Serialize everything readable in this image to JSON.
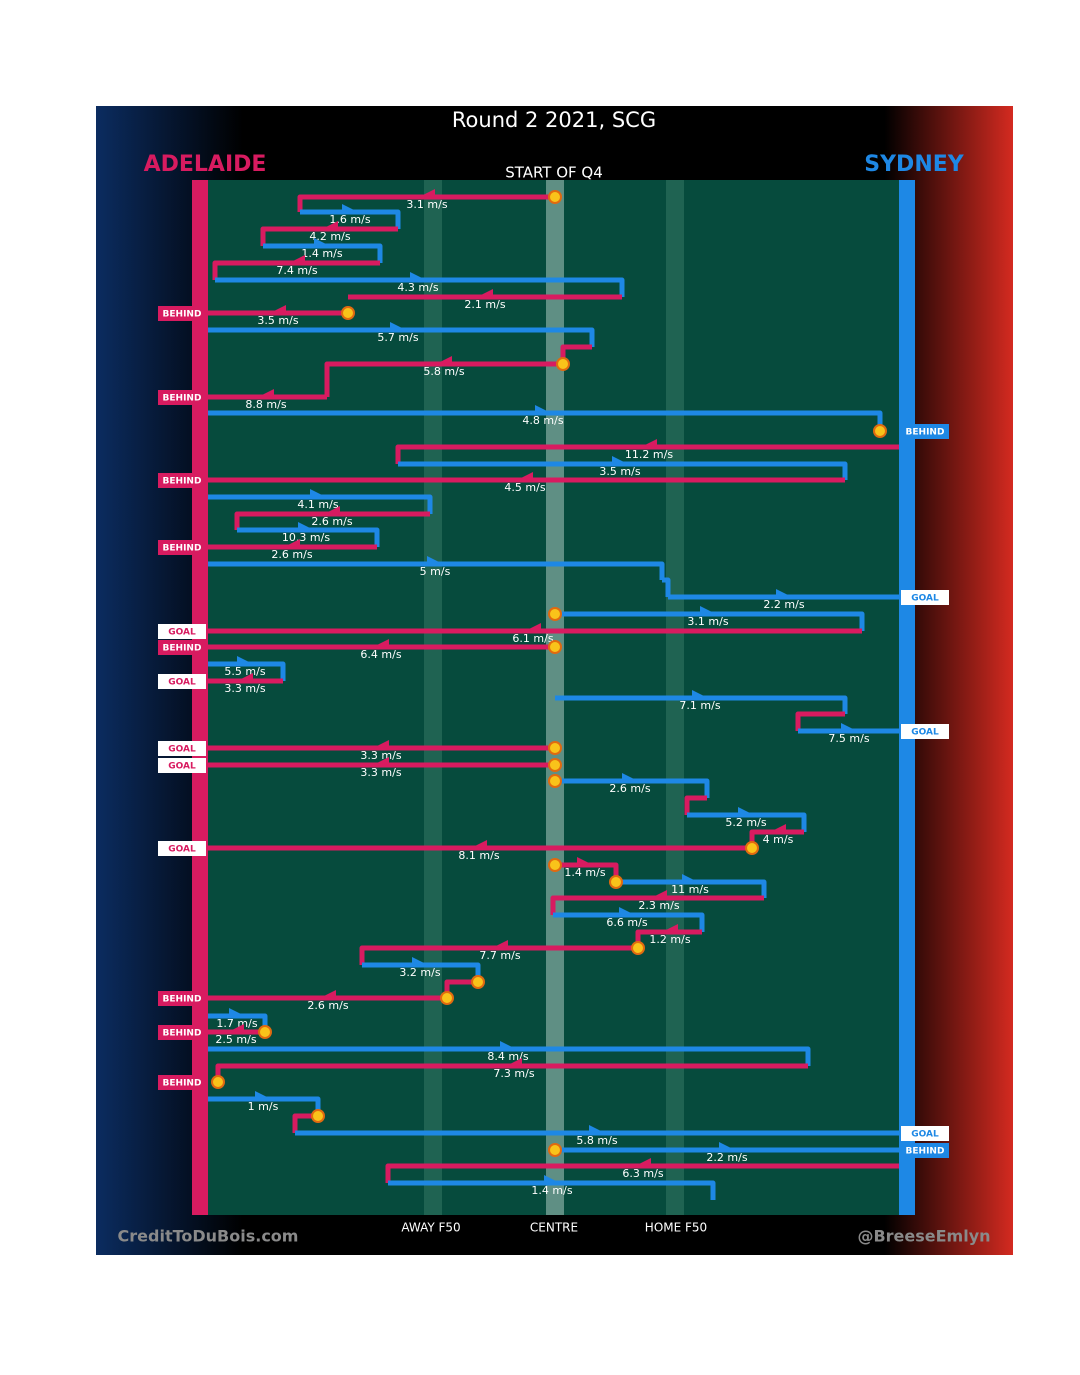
{
  "title": "Round 2 2021, SCG",
  "teams": {
    "left": {
      "name": "ADELAIDE",
      "color": "#d81b60"
    },
    "right": {
      "name": "SYDNEY",
      "color": "#1e88e5"
    }
  },
  "subtitle": "START OF Q4",
  "field_labels": [
    "AWAY F50",
    "CENTRE",
    "HOME F50"
  ],
  "credits": {
    "left": "CreditToDuBois.com",
    "right": "@BreeseEmlyn"
  },
  "speeds": [
    "3.1 m/s",
    "1.6 m/s",
    "4.2 m/s",
    "1.4 m/s",
    "7.4 m/s",
    "4.3 m/s",
    "2.1 m/s",
    "3.5 m/s",
    "5.7 m/s",
    "5.8 m/s",
    "8.8 m/s",
    "4.8 m/s",
    "11.2 m/s",
    "3.5 m/s",
    "4.5 m/s",
    "4.1 m/s",
    "2.6 m/s",
    "10.3 m/s",
    "2.6 m/s",
    "5 m/s",
    "2.2 m/s",
    "3.1 m/s",
    "6.1 m/s",
    "6.4 m/s",
    "5.5 m/s",
    "3.3 m/s",
    "7.1 m/s",
    "7.5 m/s",
    "3.3 m/s",
    "3.3 m/s",
    "2.6 m/s",
    "5.2 m/s",
    "4 m/s",
    "8.1 m/s",
    "1.4 m/s",
    "11 m/s",
    "2.3 m/s",
    "6.6 m/s",
    "1.2 m/s",
    "7.7 m/s",
    "3.2 m/s",
    "2.6 m/s",
    "1.7 m/s",
    "2.5 m/s",
    "8.4 m/s",
    "7.3 m/s",
    "1 m/s",
    "5.8 m/s",
    "2.2 m/s",
    "6.3 m/s",
    "1.4 m/s"
  ],
  "outcomes": [
    {
      "side": "left",
      "text": "BEHIND"
    },
    {
      "side": "left",
      "text": "BEHIND"
    },
    {
      "side": "right",
      "text": "BEHIND"
    },
    {
      "side": "left",
      "text": "BEHIND"
    },
    {
      "side": "left",
      "text": "BEHIND"
    },
    {
      "side": "right",
      "text": "GOAL"
    },
    {
      "side": "left",
      "text": "GOAL"
    },
    {
      "side": "left",
      "text": "BEHIND"
    },
    {
      "side": "left",
      "text": "GOAL"
    },
    {
      "side": "right",
      "text": "GOAL"
    },
    {
      "side": "left",
      "text": "GOAL"
    },
    {
      "side": "left",
      "text": "GOAL"
    },
    {
      "side": "left",
      "text": "GOAL"
    },
    {
      "side": "left",
      "text": "BEHIND"
    },
    {
      "side": "left",
      "text": "BEHIND"
    },
    {
      "side": "left",
      "text": "BEHIND"
    },
    {
      "side": "right",
      "text": "GOAL"
    },
    {
      "side": "right",
      "text": "BEHIND"
    }
  ]
}
